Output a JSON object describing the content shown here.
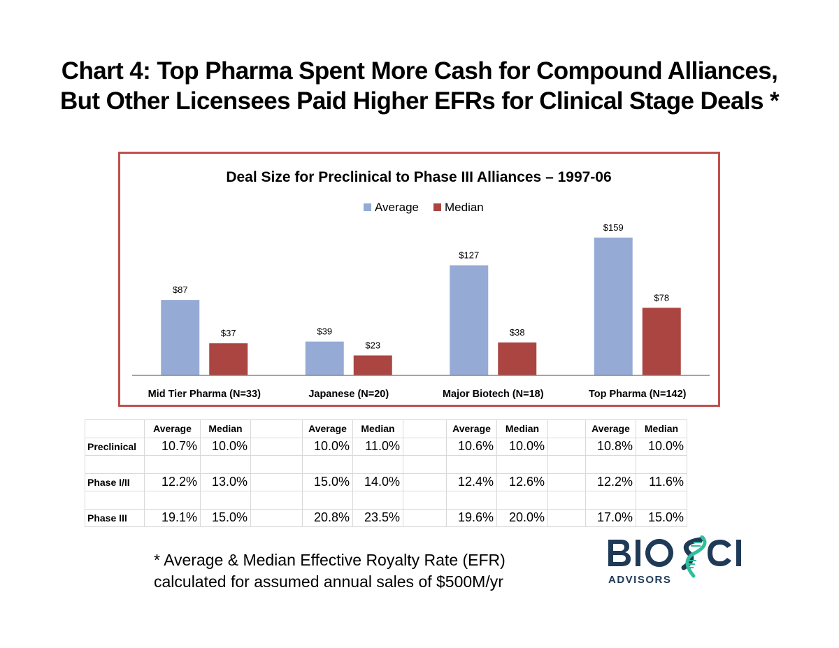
{
  "page": {
    "title_line1": "Chart 4:  Top Pharma Spent More Cash for Compound Alliances,",
    "title_line2": "But Other Licensees Paid Higher EFRs for Clinical Stage Deals *"
  },
  "chart_data": {
    "type": "bar",
    "title": "Deal Size for Preclinical to Phase III Alliances – 1997-06",
    "categories": [
      "Mid Tier Pharma (N=33)",
      "Japanese (N=20)",
      "Major Biotech (N=18)",
      "Top Pharma (N=142)"
    ],
    "series": [
      {
        "name": "Average",
        "color": "#95abd5",
        "values": [
          87,
          39,
          127,
          159
        ],
        "labels": [
          "$87",
          "$39",
          "$127",
          "$159"
        ]
      },
      {
        "name": "Median",
        "color": "#ab4542",
        "values": [
          37,
          23,
          38,
          78
        ],
        "labels": [
          "$37",
          "$23",
          "$38",
          "$78"
        ]
      }
    ],
    "xlabel": "",
    "ylabel": "",
    "ylim": [
      0,
      175
    ],
    "grid": false,
    "legend": "top-center",
    "border_color": "#c0504d"
  },
  "table": {
    "headers": [
      "Average",
      "Median"
    ],
    "rows": [
      {
        "label": "Preclinical",
        "values": [
          "10.7%",
          "10.0%",
          "10.0%",
          "11.0%",
          "10.6%",
          "10.0%",
          "10.8%",
          "10.0%"
        ]
      },
      {
        "label": "",
        "values": [
          "",
          "",
          "",
          "",
          "",
          "",
          "",
          ""
        ]
      },
      {
        "label": "Phase I/II",
        "values": [
          "12.2%",
          "13.0%",
          "15.0%",
          "14.0%",
          "12.4%",
          "12.6%",
          "12.2%",
          "11.6%"
        ]
      },
      {
        "label": "",
        "values": [
          "",
          "",
          "",
          "",
          "",
          "",
          "",
          ""
        ]
      },
      {
        "label": "Phase III",
        "values": [
          "19.1%",
          "15.0%",
          "20.8%",
          "23.5%",
          "19.6%",
          "20.0%",
          "17.0%",
          "15.0%"
        ]
      }
    ]
  },
  "footnote": {
    "line1": "* Average & Median Effective Royalty Rate (EFR)",
    "line2": "calculated for assumed annual sales of $500M/yr"
  },
  "logo": {
    "text_main": "BIOSCI",
    "text_sub": "ADVISORS",
    "color_dark": "#1f3a57",
    "color_accent": "#2fbf9b"
  }
}
